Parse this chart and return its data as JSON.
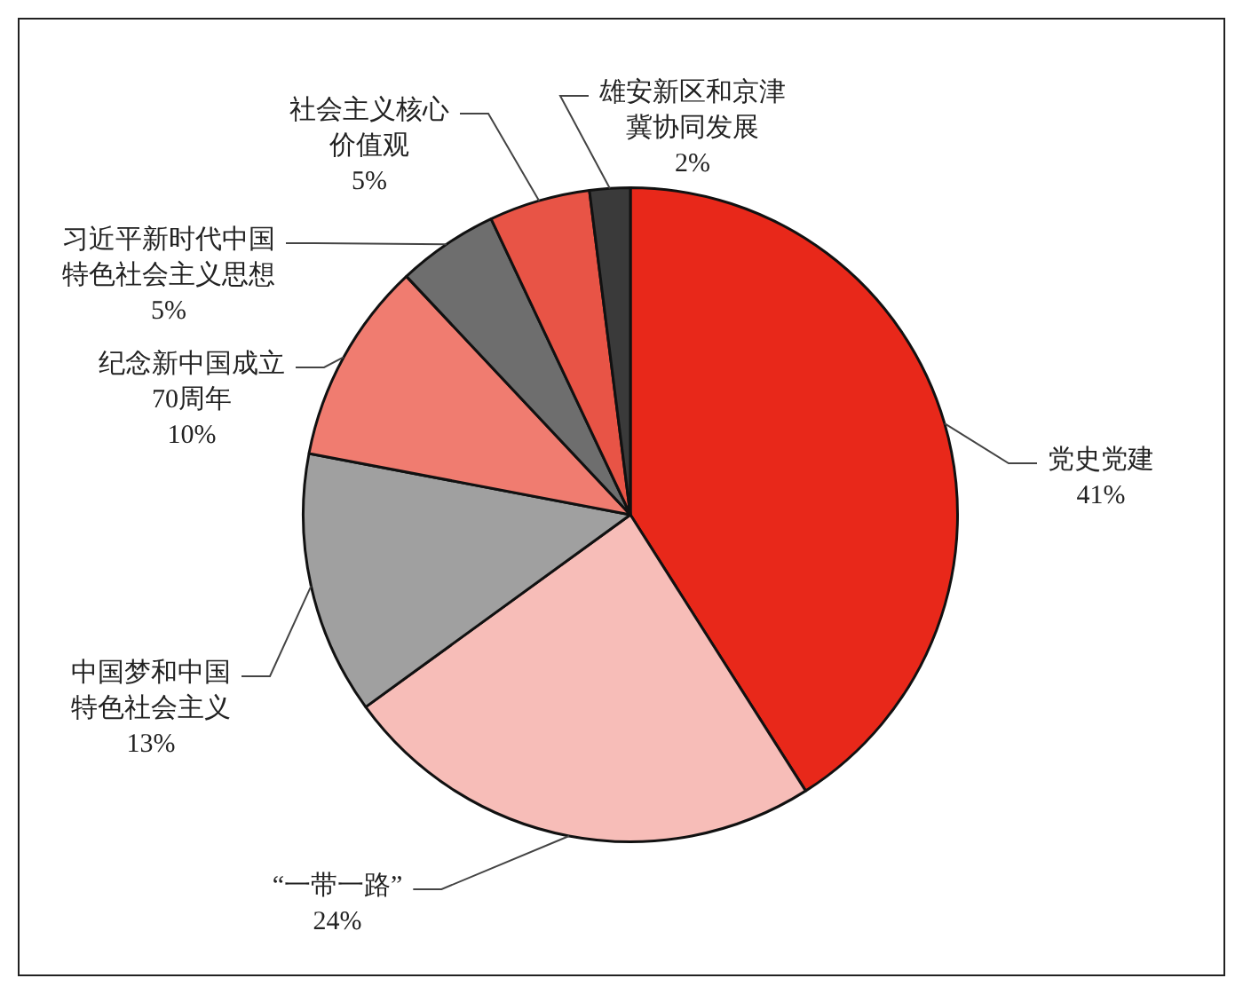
{
  "chart_data": {
    "type": "pie",
    "categories": [
      "党史党建",
      "“一带一路”",
      "中国梦和中国特色社会主义",
      "纪念新中国成立70周年",
      "习近平新时代中国特色社会主义思想",
      "社会主义核心价值观",
      "雄安新区和京津冀协同发展"
    ],
    "values": [
      41,
      24,
      13,
      10,
      5,
      5,
      2
    ],
    "colors": [
      "#e8281a",
      "#f7bdb8",
      "#a0a0a0",
      "#f07c70",
      "#6e6e6e",
      "#e85446",
      "#3a3a3a"
    ],
    "value_labels": [
      "41%",
      "24%",
      "13%",
      "10%",
      "5%",
      "5%",
      "2%"
    ],
    "legend": false
  }
}
